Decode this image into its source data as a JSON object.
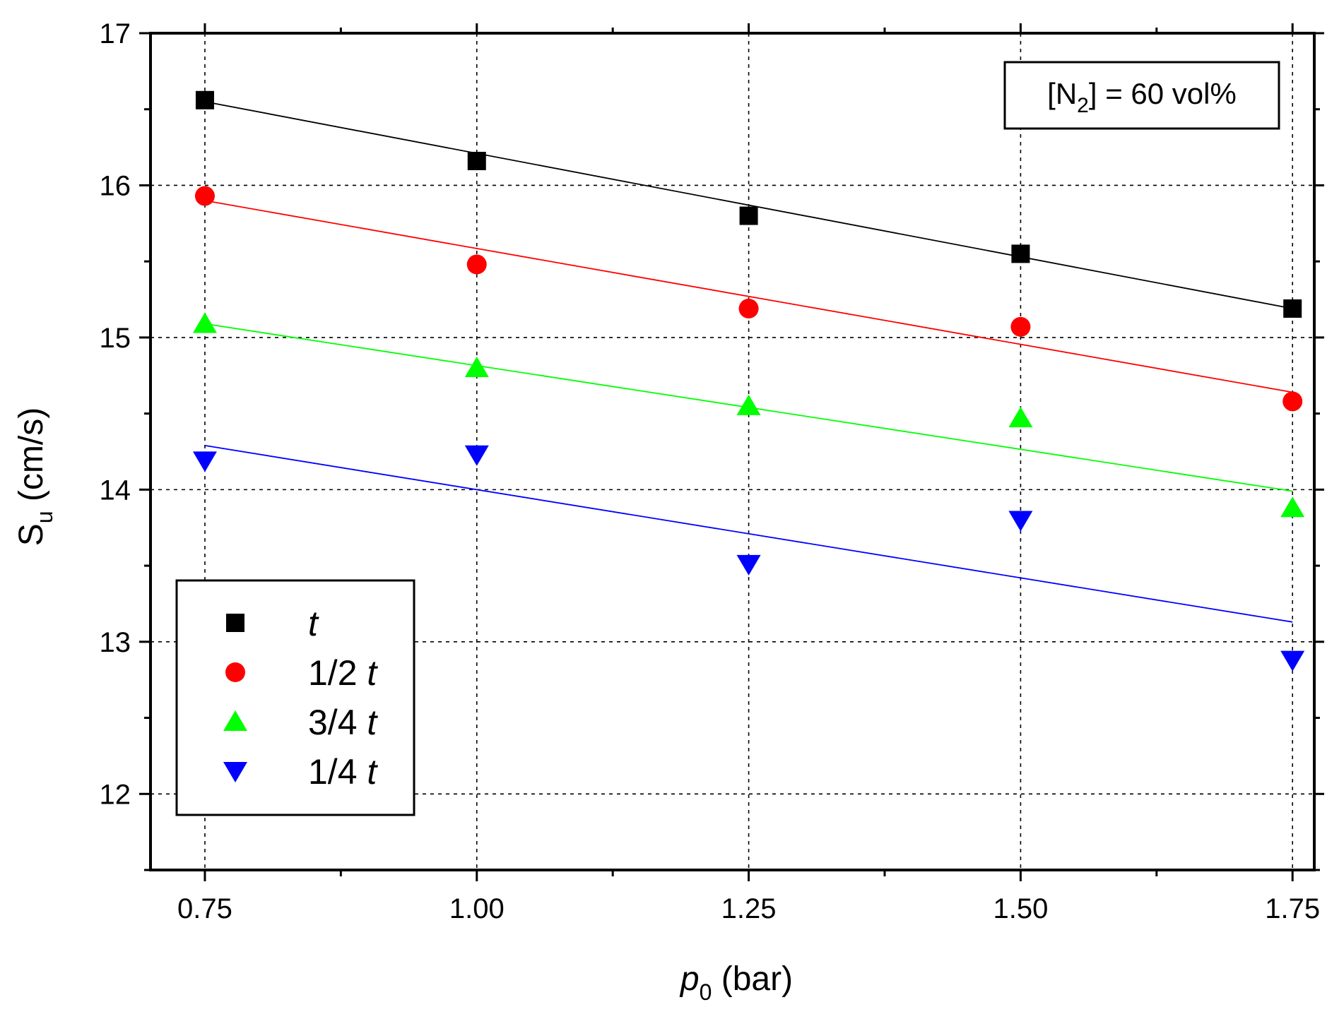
{
  "chart_data": {
    "type": "scatter",
    "title": "",
    "xlabel": {
      "main": "p",
      "sub": "0",
      "suffix": " (bar)"
    },
    "ylabel": {
      "main": "S",
      "sub": "u",
      "suffix": " (cm/s)"
    },
    "xlim": [
      0.7,
      1.77
    ],
    "ylim": [
      11.5,
      17
    ],
    "x_ticks": [
      {
        "value": 0.75,
        "label": "0.75"
      },
      {
        "value": 1.0,
        "label": "1.00"
      },
      {
        "value": 1.25,
        "label": "1.25"
      },
      {
        "value": 1.5,
        "label": "1.50"
      },
      {
        "value": 1.75,
        "label": "1.75"
      }
    ],
    "x_minor_ticks": [
      0.875,
      1.125,
      1.375,
      1.625
    ],
    "y_ticks": [
      {
        "value": 12,
        "label": "12"
      },
      {
        "value": 13,
        "label": "13"
      },
      {
        "value": 14,
        "label": "14"
      },
      {
        "value": 15,
        "label": "15"
      },
      {
        "value": 16,
        "label": "16"
      },
      {
        "value": 17,
        "label": "17"
      }
    ],
    "y_minor_ticks": [
      11.5,
      12.5,
      13.5,
      14.5,
      15.5,
      16.5
    ],
    "grid": true,
    "x": [
      0.75,
      1.0,
      1.25,
      1.5,
      1.75
    ],
    "series": [
      {
        "key": "t",
        "coef": "",
        "symbol": "t",
        "marker": "square",
        "color": "#000000",
        "values": [
          16.56,
          16.16,
          15.8,
          15.55,
          15.19
        ],
        "fit": [
          16.55,
          15.19
        ]
      },
      {
        "key": "half-t",
        "coef": "1/2 ",
        "symbol": "t",
        "marker": "circle",
        "color": "#ff0000",
        "values": [
          15.93,
          15.48,
          15.19,
          15.07,
          14.58
        ],
        "fit": [
          15.9,
          14.64
        ]
      },
      {
        "key": "three-quarter-t",
        "coef": "3/4 ",
        "symbol": "t",
        "marker": "triangle-up",
        "color": "#00ff00",
        "values": [
          15.09,
          14.8,
          14.55,
          14.47,
          13.88
        ],
        "fit": [
          15.09,
          13.99
        ]
      },
      {
        "key": "quarter-t",
        "coef": "1/4 ",
        "symbol": "t",
        "marker": "triangle-down",
        "color": "#0000ff",
        "values": [
          14.19,
          14.23,
          13.51,
          13.8,
          12.88
        ],
        "fit": [
          14.29,
          13.13
        ]
      }
    ],
    "annotation": {
      "prefix": "[N",
      "sub": "2",
      "suffix": "] = 60 vol%"
    },
    "legend_position": "bottom-left"
  }
}
